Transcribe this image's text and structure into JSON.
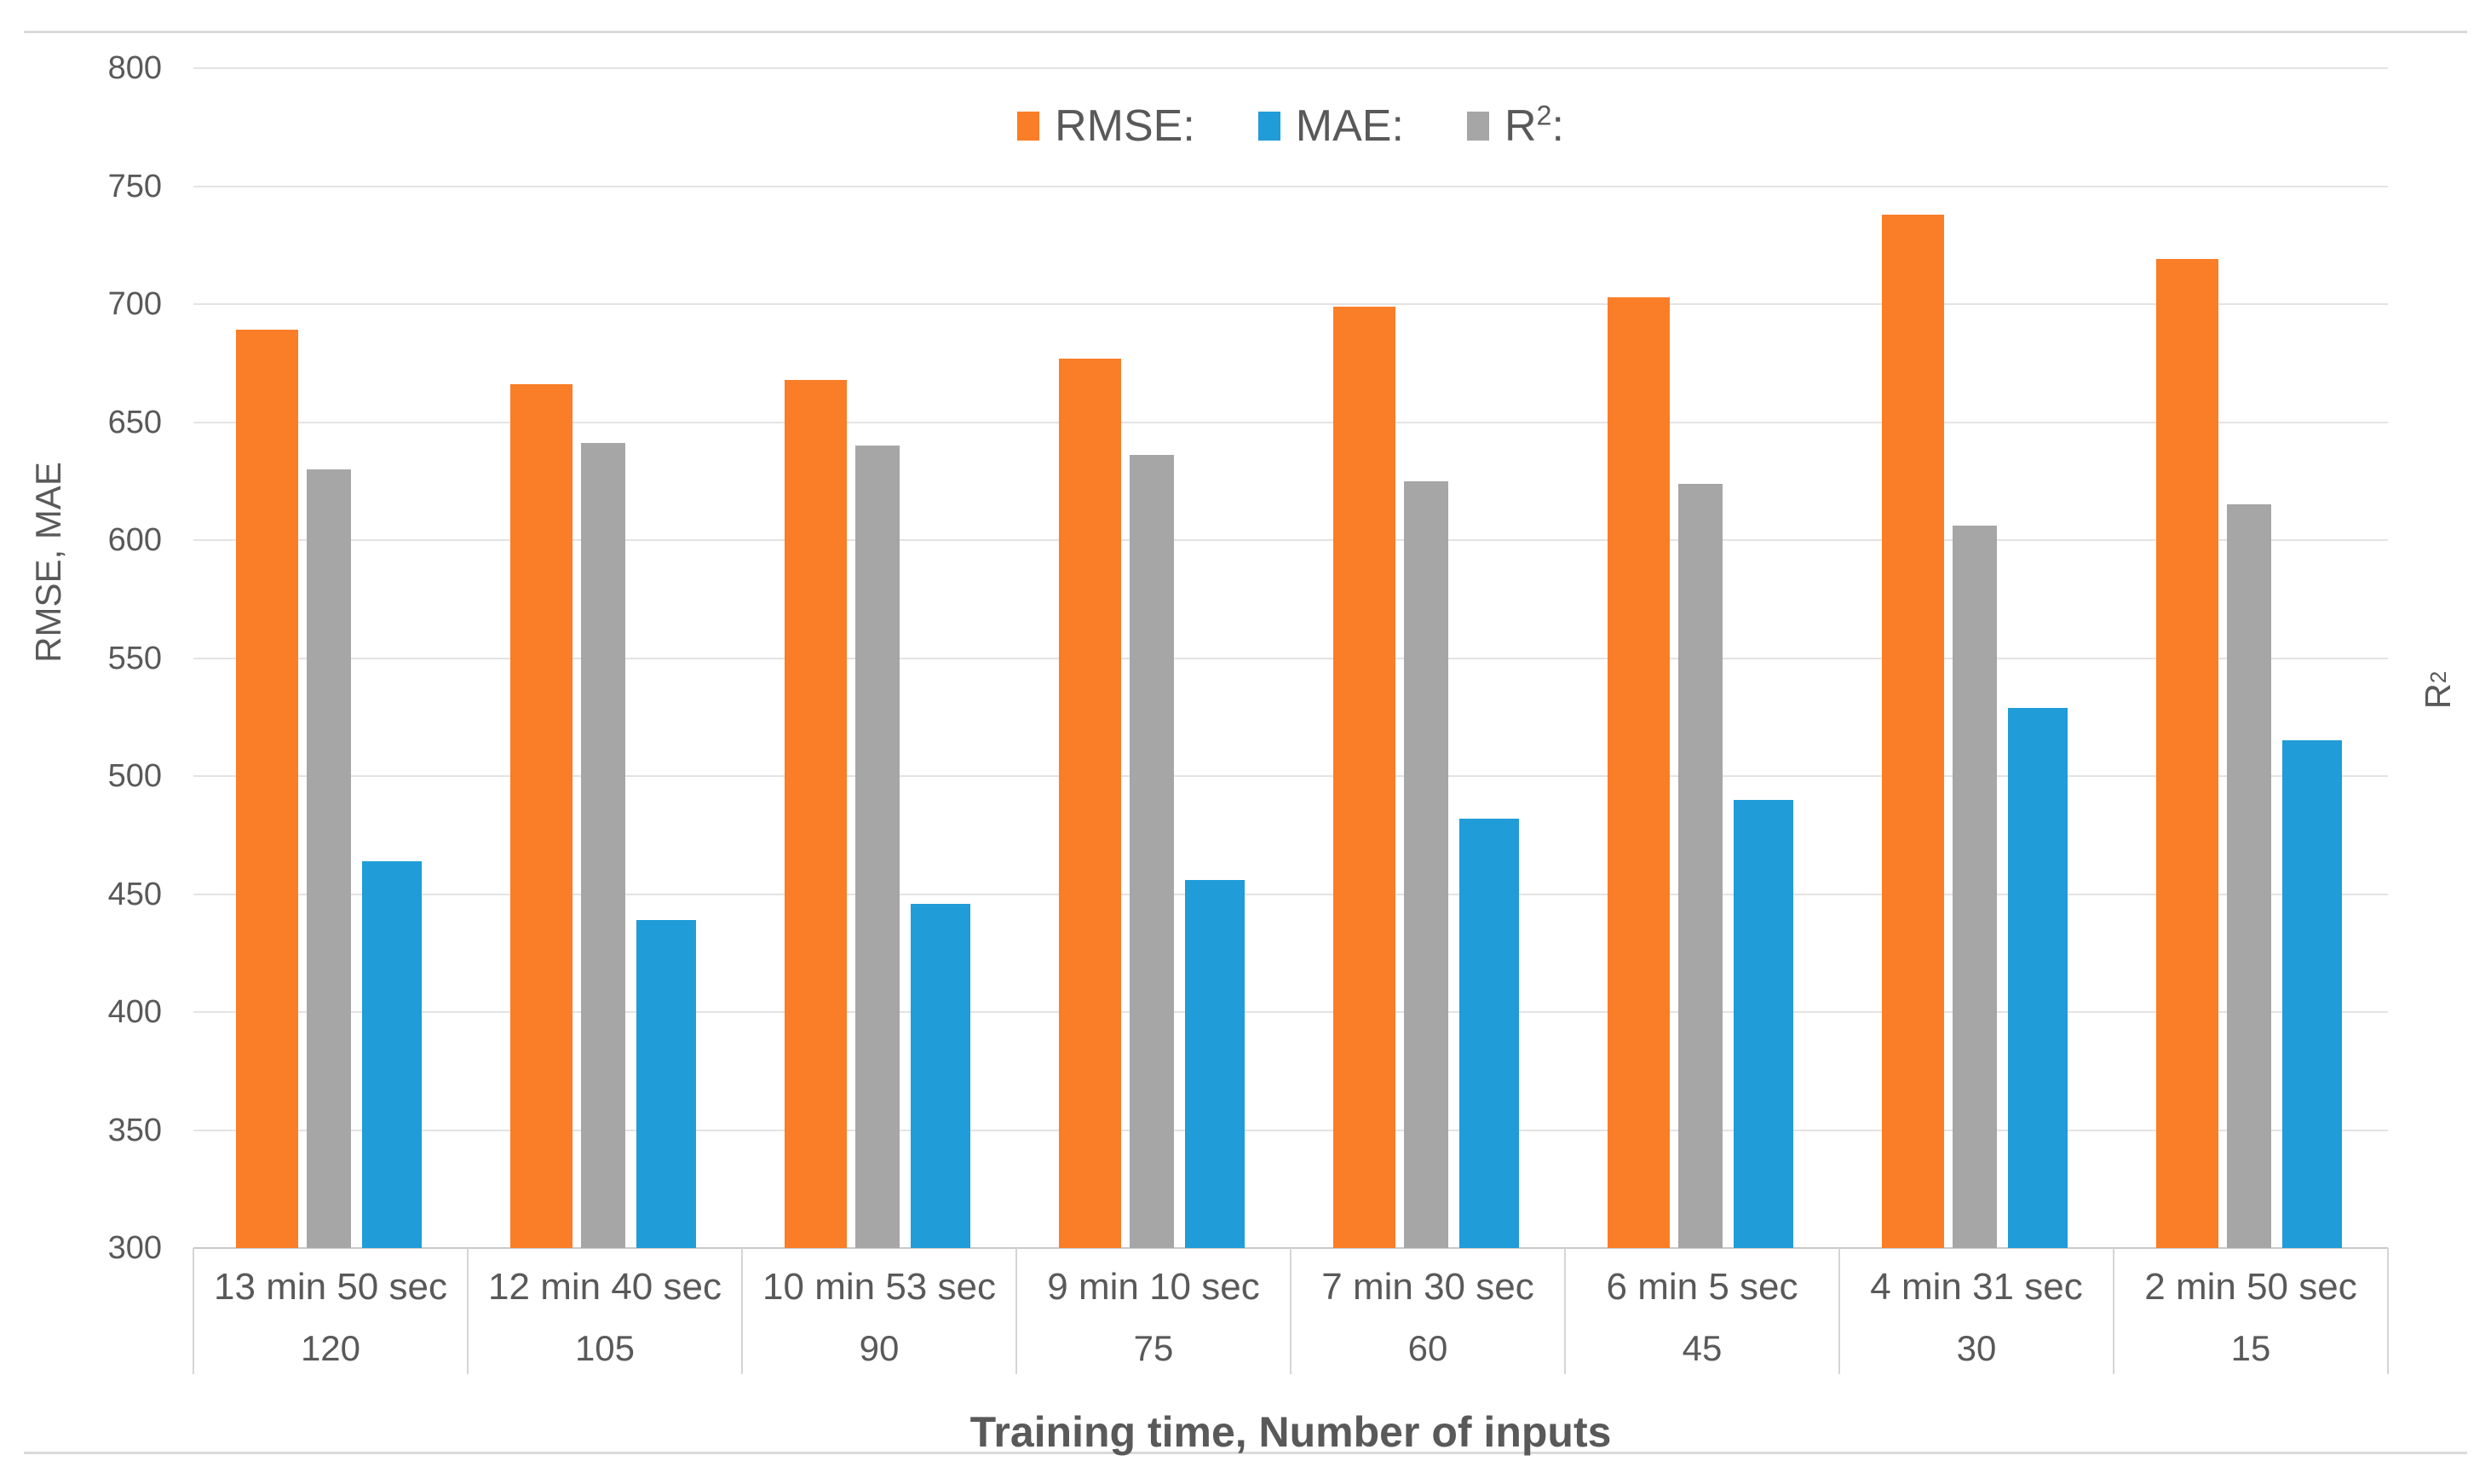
{
  "chart_data": {
    "type": "bar",
    "title": "",
    "xlabel": "Training time, Number of inputs",
    "ylabel": "RMSE, MAE",
    "y2label": {
      "base": "R",
      "sup": "2"
    },
    "ylim": [
      300,
      800
    ],
    "yticks": [
      300,
      350,
      400,
      450,
      500,
      550,
      600,
      650,
      700,
      750,
      800
    ],
    "grid": true,
    "legend_position": "top-center",
    "categories": [
      {
        "time": "13 min 50 sec",
        "inputs": "120"
      },
      {
        "time": "12 min 40 sec",
        "inputs": "105"
      },
      {
        "time": "10 min 53 sec",
        "inputs": "90"
      },
      {
        "time": "9 min 10 sec",
        "inputs": "75"
      },
      {
        "time": "7 min 30 sec",
        "inputs": "60"
      },
      {
        "time": "6 min 5 sec",
        "inputs": "45"
      },
      {
        "time": "4 min 31 sec",
        "inputs": "30"
      },
      {
        "time": "2 min 50 sec",
        "inputs": "15"
      }
    ],
    "series": [
      {
        "name": "RMSE",
        "axis": "primary",
        "color": "#FA7D27",
        "values": [
          689,
          666,
          668,
          677,
          699,
          703,
          738,
          719
        ]
      },
      {
        "name": "MAE",
        "axis": "primary",
        "color": "#209CD8",
        "values": [
          464,
          439,
          446,
          456,
          482,
          490,
          529,
          515
        ]
      },
      {
        "name": "R²",
        "axis": "secondary",
        "color": "#A6A6A6",
        "values": [
          630,
          641,
          640,
          636,
          625,
          624,
          606,
          615
        ]
      }
    ],
    "note": "R² series is drawn against an unlabeled secondary axis; bar tops listed as read on the left 300–800 scale.",
    "legend": {
      "items": [
        {
          "base": "RMSE",
          "sup": "",
          "suffix": ":",
          "color": "#FA7D27"
        },
        {
          "base": "MAE",
          "sup": "",
          "suffix": ":",
          "color": "#209CD8"
        },
        {
          "base": "R",
          "sup": "2",
          "suffix": ":",
          "color": "#A6A6A6"
        }
      ]
    },
    "colors": {
      "rmse": "#FA7D27",
      "mae": "#209CD8",
      "r2": "#A6A6A6",
      "gridline": "#E3E3E3",
      "axis_line": "#C9C9C9",
      "text": "#595959"
    }
  }
}
